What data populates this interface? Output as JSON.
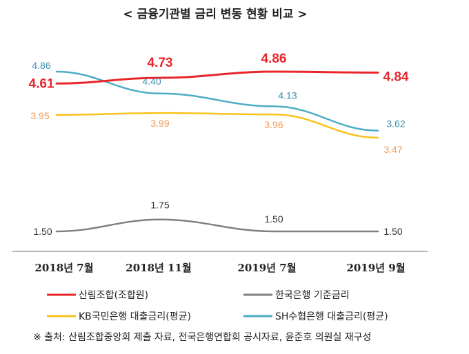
{
  "chart_data": {
    "type": "line",
    "title": "< 금융기관별 금리 변동 현황 비교 >",
    "categories": [
      "2018년  7월",
      "2018년  11월",
      "2019년  7월",
      "2019년  9월"
    ],
    "series": [
      {
        "name": "산림조합(조합원)",
        "values": [
          4.61,
          4.73,
          4.86,
          4.84
        ],
        "color": "#e8262a",
        "label_color": "#e8262a"
      },
      {
        "name": "한국은행 기준금리",
        "values": [
          1.5,
          1.75,
          1.5,
          1.5
        ],
        "color": "#7f7f7f",
        "label_color": "#333333"
      },
      {
        "name": "KB국민은행 대출금리(평균)",
        "values": [
          3.95,
          3.99,
          3.96,
          3.47
        ],
        "color": "#f7c31c",
        "label_color": "#ef9a5a"
      },
      {
        "name": "SH수협은행 대출금리(평균)",
        "values": [
          4.86,
          4.4,
          4.13,
          3.62
        ],
        "color": "#4bacc6",
        "label_color": "#3b8fb0"
      }
    ],
    "value_labels": [
      [
        "4.61",
        "4.73",
        "4.86",
        "4.84"
      ],
      [
        "1.50",
        "1.75",
        "1.50",
        "1.50"
      ],
      [
        "3.95",
        "3.99",
        "3.96",
        "3.47"
      ],
      [
        "4.86",
        "4.40",
        "4.13",
        "3.62"
      ]
    ],
    "legend_position": "bottom",
    "grid": false
  },
  "source_note": "※ 출처: 산림조합중앙회 제출 자료, 전국은행연합회 공시자료, 윤준호 의원실 재구성"
}
